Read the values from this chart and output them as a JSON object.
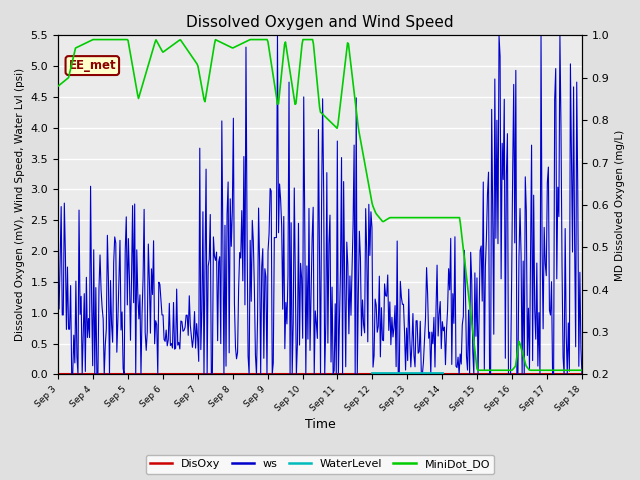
{
  "title": "Dissolved Oxygen and Wind Speed",
  "ylabel_left": "Dissolved Oxygen (mV), Wind Speed, Water Lvl (psi)",
  "ylabel_right": "MD Dissolved Oxygen (mg/L)",
  "xlabel": "Time",
  "ylim_left": [
    0.0,
    5.5
  ],
  "ylim_right": [
    0.2,
    1.0
  ],
  "annotation": "EE_met",
  "fig_facecolor": "#e0e0e0",
  "plot_facecolor": "#ebebeb",
  "legend_labels": [
    "DisOxy",
    "ws",
    "WaterLevel",
    "MiniDot_DO"
  ],
  "legend_colors": [
    "#cc0000",
    "#0000cc",
    "#00bbbb",
    "#00cc00"
  ],
  "xtick_labels": [
    "Sep 3",
    "Sep 4",
    "Sep 5",
    "Sep 6",
    "Sep 7",
    "Sep 8",
    "Sep 9",
    "Sep 10",
    "Sep 11",
    "Sep 12",
    "Sep 13",
    "Sep 14",
    "Sep 15",
    "Sep 16",
    "Sep 17",
    "Sep 18"
  ],
  "seed": 42
}
